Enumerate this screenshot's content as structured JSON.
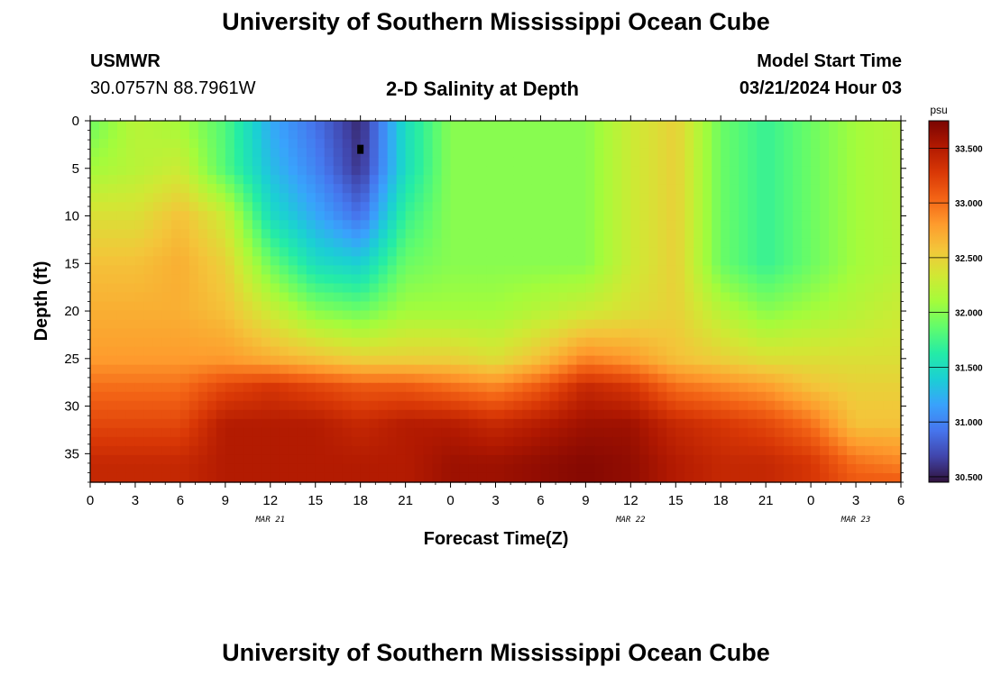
{
  "header": {
    "title": "University of Southern Mississippi Ocean Cube",
    "footer_title": "University of Southern Mississippi Ocean Cube",
    "station": "USMWR",
    "location": "30.0757N  88.7961W",
    "chart_subtitle": "2-D Salinity at Depth",
    "model_start_label": "Model Start Time",
    "model_start_value": "03/21/2024 Hour 03"
  },
  "chart_data": {
    "type": "heatmap",
    "title": "2-D Salinity at Depth",
    "xlabel": "Forecast Time(Z)",
    "ylabel": "Depth (ft)",
    "x_hours_range": [
      0,
      54
    ],
    "x_tick_labels": [
      "0",
      "3",
      "6",
      "9",
      "12",
      "15",
      "18",
      "21",
      "0",
      "3",
      "6",
      "9",
      "12",
      "15",
      "18",
      "21",
      "0",
      "3",
      "6"
    ],
    "date_labels": [
      "MAR 21",
      "MAR 22",
      "MAR 23"
    ],
    "date_label_hours": [
      12,
      36,
      51
    ],
    "y_range": [
      0,
      38
    ],
    "y_ticks": [
      0,
      5,
      10,
      15,
      20,
      25,
      30,
      35
    ],
    "colorbar": {
      "unit": "psu",
      "range": [
        30.45,
        33.75
      ],
      "tick_values": [
        30.5,
        31.0,
        31.5,
        32.0,
        32.5,
        33.0,
        33.5
      ],
      "tick_labels": [
        "30.500",
        "31.000",
        "31.500",
        "32.000",
        "32.500",
        "33.000",
        "33.500"
      ]
    },
    "marker": {
      "hour": 18,
      "depth": 3
    },
    "grid": false,
    "estimated_profiles": {
      "depths": [
        0,
        5,
        10,
        15,
        20,
        25,
        28,
        32,
        36,
        38
      ],
      "times": [
        0,
        3,
        6,
        9,
        12,
        15,
        18,
        21,
        24,
        27,
        30,
        33,
        36,
        39,
        42,
        45,
        48,
        51,
        54
      ],
      "salinity_by_time": [
        [
          31.9,
          32.1,
          32.4,
          32.6,
          32.7,
          32.8,
          33.0,
          33.2,
          33.4,
          33.4
        ],
        [
          32.2,
          32.2,
          32.4,
          32.6,
          32.7,
          32.8,
          33.0,
          33.2,
          33.4,
          33.4
        ],
        [
          32.1,
          32.3,
          32.6,
          32.7,
          32.7,
          32.8,
          33.0,
          33.2,
          33.4,
          33.4
        ],
        [
          31.8,
          31.8,
          32.3,
          32.5,
          32.6,
          32.8,
          33.2,
          33.5,
          33.5,
          33.5
        ],
        [
          31.2,
          31.3,
          31.5,
          31.9,
          32.3,
          32.7,
          33.3,
          33.5,
          33.5,
          33.5
        ],
        [
          30.9,
          31.0,
          31.2,
          31.5,
          32.0,
          32.6,
          33.2,
          33.5,
          33.5,
          33.5
        ],
        [
          30.55,
          30.6,
          30.9,
          31.4,
          31.9,
          32.5,
          33.1,
          33.4,
          33.5,
          33.5
        ],
        [
          31.5,
          31.5,
          31.7,
          31.9,
          32.1,
          32.5,
          33.1,
          33.5,
          33.5,
          33.5
        ],
        [
          32.0,
          32.0,
          32.0,
          32.0,
          32.1,
          32.5,
          33.0,
          33.5,
          33.6,
          33.6
        ],
        [
          32.0,
          32.0,
          32.0,
          32.0,
          32.1,
          32.4,
          32.9,
          33.4,
          33.6,
          33.6
        ],
        [
          32.0,
          32.0,
          32.0,
          32.0,
          32.2,
          32.6,
          33.1,
          33.5,
          33.65,
          33.65
        ],
        [
          32.0,
          32.0,
          32.0,
          32.0,
          32.3,
          32.9,
          33.4,
          33.6,
          33.7,
          33.7
        ],
        [
          32.3,
          32.3,
          32.3,
          32.3,
          32.4,
          32.8,
          33.3,
          33.6,
          33.65,
          33.65
        ],
        [
          32.5,
          32.5,
          32.5,
          32.5,
          32.5,
          32.6,
          33.0,
          33.4,
          33.5,
          33.5
        ],
        [
          31.9,
          31.9,
          31.9,
          31.9,
          32.2,
          32.5,
          32.9,
          33.3,
          33.4,
          33.4
        ],
        [
          31.7,
          31.7,
          31.7,
          31.7,
          32.0,
          32.4,
          32.8,
          33.2,
          33.4,
          33.4
        ],
        [
          31.9,
          31.9,
          31.9,
          31.9,
          32.1,
          32.4,
          32.6,
          33.0,
          33.3,
          33.3
        ],
        [
          32.1,
          32.1,
          32.1,
          32.1,
          32.2,
          32.4,
          32.5,
          32.6,
          33.0,
          33.1
        ],
        [
          32.2,
          32.2,
          32.2,
          32.2,
          32.3,
          32.4,
          32.5,
          32.6,
          32.9,
          33.1
        ]
      ]
    }
  },
  "colors": {
    "palette_stops": [
      "#30123b",
      "#4145ab",
      "#4675ed",
      "#39a2fc",
      "#1bcfd4",
      "#24eca6",
      "#61fc6c",
      "#a4fc3b",
      "#d1e834",
      "#f3c63a",
      "#fe9b2d",
      "#f36315",
      "#d93806",
      "#b11901",
      "#7a0402"
    ]
  }
}
